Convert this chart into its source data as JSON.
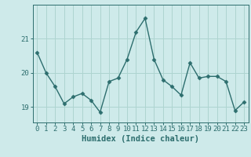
{
  "x": [
    0,
    1,
    2,
    3,
    4,
    5,
    6,
    7,
    8,
    9,
    10,
    11,
    12,
    13,
    14,
    15,
    16,
    17,
    18,
    19,
    20,
    21,
    22,
    23
  ],
  "y": [
    20.6,
    20.0,
    19.6,
    19.1,
    19.3,
    19.4,
    19.2,
    18.85,
    19.75,
    19.85,
    20.4,
    21.2,
    21.6,
    20.4,
    19.8,
    19.6,
    19.35,
    20.3,
    19.85,
    19.9,
    19.9,
    19.75,
    18.9,
    19.15
  ],
  "line_color": "#2d6e6e",
  "marker": "D",
  "markersize": 2.5,
  "linewidth": 1.0,
  "bg_color": "#ceeaea",
  "grid_color": "#aed4d0",
  "xlabel": "Humidex (Indice chaleur)",
  "xlabel_fontsize": 7.5,
  "tick_fontsize": 6.5,
  "yticks": [
    19,
    20,
    21
  ],
  "ylim": [
    18.55,
    22.0
  ],
  "xlim": [
    -0.5,
    23.5
  ]
}
